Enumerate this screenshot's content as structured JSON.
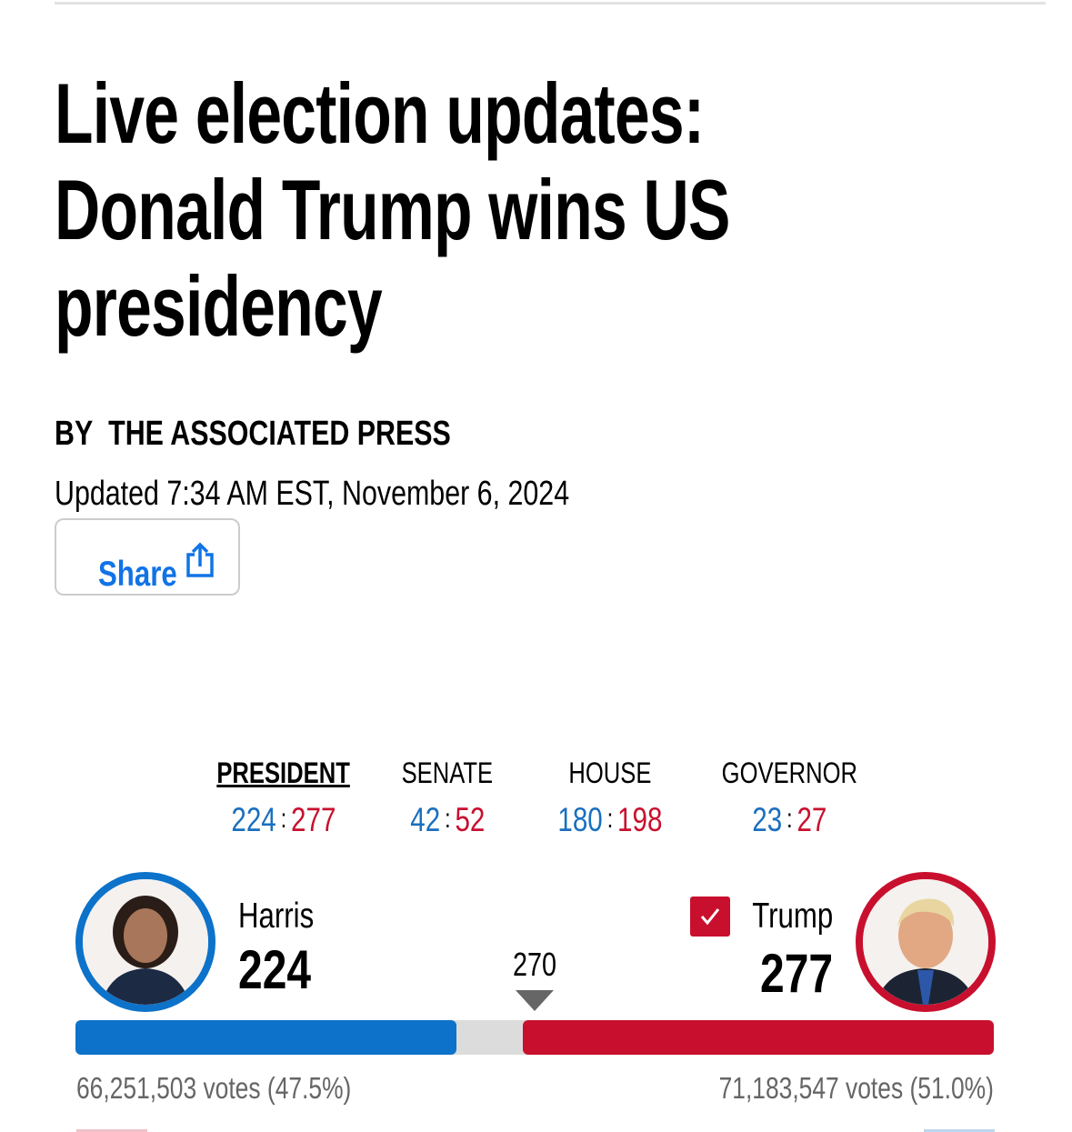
{
  "header": {
    "title": "Live election updates: Donald Trump wins US presidency",
    "byline_prefix": "BY",
    "byline": "THE ASSOCIATED PRESS",
    "updated": "Updated 7:34 AM EST, November 6, 2024",
    "share": "Share"
  },
  "races": [
    {
      "label": "PRESIDENT",
      "dem": 224,
      "rep": 277
    },
    {
      "label": "SENATE",
      "dem": 42,
      "rep": 52
    },
    {
      "label": "HOUSE",
      "dem": 180,
      "rep": 198
    },
    {
      "label": "GOVERNOR",
      "dem": 23,
      "rep": 27
    }
  ],
  "president": {
    "threshold": 270,
    "dem": {
      "name": "Harris",
      "electoral": 224,
      "votes": "66,251,503 votes (47.5%)"
    },
    "rep": {
      "name": "Trump",
      "electoral": 277,
      "votes": "71,183,547 votes (51.0%)"
    }
  }
}
